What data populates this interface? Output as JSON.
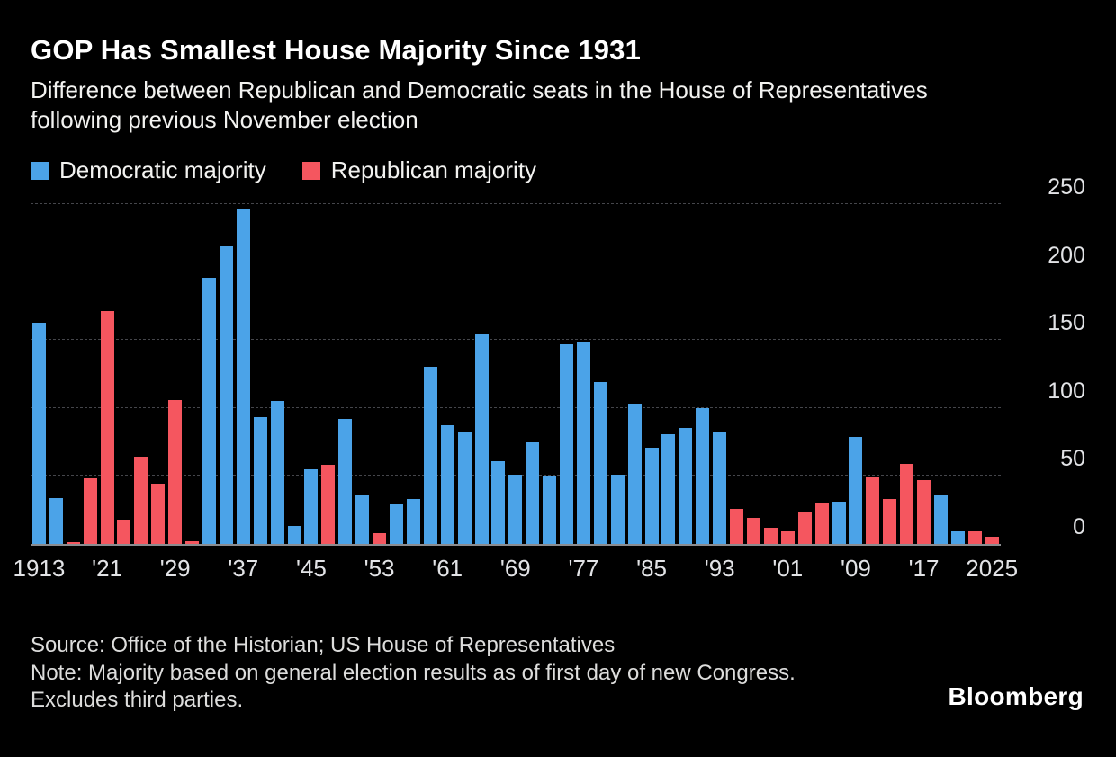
{
  "header": {
    "title": "GOP Has Smallest House Majority Since 1931",
    "subtitle": "Difference between Republican and Democratic seats in the House of Representatives following previous November election"
  },
  "legend": [
    {
      "label": "Democratic majority",
      "party": "D",
      "color": "#4ba3e8"
    },
    {
      "label": "Republican majority",
      "party": "R",
      "color": "#f5565f"
    }
  ],
  "chart_data": {
    "type": "bar",
    "title": "GOP Has Smallest House Majority Since 1931",
    "ylim": [
      0,
      250
    ],
    "yticks": [
      0,
      50,
      100,
      150,
      200,
      250
    ],
    "xtick_labels": [
      "1913",
      "'21",
      "'29",
      "'37",
      "'45",
      "'53",
      "'61",
      "'69",
      "'77",
      "'85",
      "'93",
      "'01",
      "'09",
      "'17",
      "2025"
    ],
    "grid": "dashed-horizontal",
    "legend_position": "top-left",
    "yaxis_side": "right",
    "colors": {
      "D": "#4ba3e8",
      "R": "#f5565f"
    },
    "points": [
      {
        "year": 1913,
        "party": "D",
        "margin": 163
      },
      {
        "year": 1915,
        "party": "D",
        "margin": 34
      },
      {
        "year": 1917,
        "party": "R",
        "margin": 1
      },
      {
        "year": 1919,
        "party": "R",
        "margin": 48
      },
      {
        "year": 1921,
        "party": "R",
        "margin": 171
      },
      {
        "year": 1923,
        "party": "R",
        "margin": 18
      },
      {
        "year": 1925,
        "party": "R",
        "margin": 64
      },
      {
        "year": 1927,
        "party": "R",
        "margin": 44
      },
      {
        "year": 1929,
        "party": "R",
        "margin": 106
      },
      {
        "year": 1931,
        "party": "R",
        "margin": 2
      },
      {
        "year": 1933,
        "party": "D",
        "margin": 196
      },
      {
        "year": 1935,
        "party": "D",
        "margin": 219
      },
      {
        "year": 1937,
        "party": "D",
        "margin": 246
      },
      {
        "year": 1939,
        "party": "D",
        "margin": 93
      },
      {
        "year": 1941,
        "party": "D",
        "margin": 105
      },
      {
        "year": 1943,
        "party": "D",
        "margin": 13
      },
      {
        "year": 1945,
        "party": "D",
        "margin": 55
      },
      {
        "year": 1947,
        "party": "R",
        "margin": 58
      },
      {
        "year": 1949,
        "party": "D",
        "margin": 92
      },
      {
        "year": 1951,
        "party": "D",
        "margin": 36
      },
      {
        "year": 1953,
        "party": "R",
        "margin": 8
      },
      {
        "year": 1955,
        "party": "D",
        "margin": 29
      },
      {
        "year": 1957,
        "party": "D",
        "margin": 33
      },
      {
        "year": 1959,
        "party": "D",
        "margin": 130
      },
      {
        "year": 1961,
        "party": "D",
        "margin": 87
      },
      {
        "year": 1963,
        "party": "D",
        "margin": 82
      },
      {
        "year": 1965,
        "party": "D",
        "margin": 155
      },
      {
        "year": 1967,
        "party": "D",
        "margin": 61
      },
      {
        "year": 1969,
        "party": "D",
        "margin": 51
      },
      {
        "year": 1971,
        "party": "D",
        "margin": 75
      },
      {
        "year": 1973,
        "party": "D",
        "margin": 50
      },
      {
        "year": 1975,
        "party": "D",
        "margin": 147
      },
      {
        "year": 1977,
        "party": "D",
        "margin": 149
      },
      {
        "year": 1979,
        "party": "D",
        "margin": 119
      },
      {
        "year": 1981,
        "party": "D",
        "margin": 51
      },
      {
        "year": 1983,
        "party": "D",
        "margin": 103
      },
      {
        "year": 1985,
        "party": "D",
        "margin": 71
      },
      {
        "year": 1987,
        "party": "D",
        "margin": 81
      },
      {
        "year": 1989,
        "party": "D",
        "margin": 85
      },
      {
        "year": 1991,
        "party": "D",
        "margin": 100
      },
      {
        "year": 1993,
        "party": "D",
        "margin": 82
      },
      {
        "year": 1995,
        "party": "R",
        "margin": 26
      },
      {
        "year": 1997,
        "party": "R",
        "margin": 19
      },
      {
        "year": 1999,
        "party": "R",
        "margin": 12
      },
      {
        "year": 2001,
        "party": "R",
        "margin": 9
      },
      {
        "year": 2003,
        "party": "R",
        "margin": 24
      },
      {
        "year": 2005,
        "party": "R",
        "margin": 30
      },
      {
        "year": 2007,
        "party": "D",
        "margin": 31
      },
      {
        "year": 2009,
        "party": "D",
        "margin": 79
      },
      {
        "year": 2011,
        "party": "R",
        "margin": 49
      },
      {
        "year": 2013,
        "party": "R",
        "margin": 33
      },
      {
        "year": 2015,
        "party": "R",
        "margin": 59
      },
      {
        "year": 2017,
        "party": "R",
        "margin": 47
      },
      {
        "year": 2019,
        "party": "D",
        "margin": 36
      },
      {
        "year": 2021,
        "party": "D",
        "margin": 9
      },
      {
        "year": 2023,
        "party": "R",
        "margin": 9
      },
      {
        "year": 2025,
        "party": "R",
        "margin": 5
      }
    ]
  },
  "footer": {
    "source": "Source: Office of the Historian; US House of Representatives",
    "note": "Note: Majority based on general election results as of first day of new Congress. Excludes third parties.",
    "brand": "Bloomberg"
  }
}
